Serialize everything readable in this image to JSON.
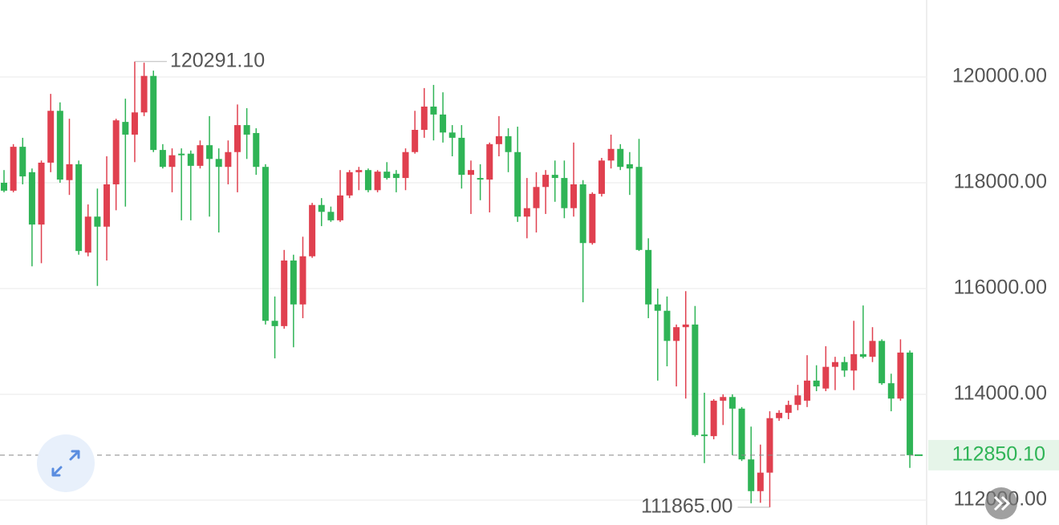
{
  "chart_data": {
    "type": "candlestick",
    "up_color": "#e0404f",
    "down_color": "#2fb456",
    "ylim": [
      111530,
      121455
    ],
    "yticks": [
      {
        "value": 112000,
        "label": "112000.00"
      },
      {
        "value": 114000,
        "label": "114000.00"
      },
      {
        "value": 116000,
        "label": "116000.00"
      },
      {
        "value": 118000,
        "label": "118000.00"
      },
      {
        "value": 120000,
        "label": "120000.00"
      }
    ],
    "grid": true,
    "high_label": "120291.10",
    "low_label": "111865.00",
    "last_label": "112850.10",
    "ohlc": [
      [
        118000,
        118240,
        117820,
        117850
      ],
      [
        117850,
        118730,
        117820,
        118680
      ],
      [
        118680,
        118850,
        117970,
        118120
      ],
      [
        118200,
        118270,
        116420,
        117210
      ],
      [
        117210,
        118420,
        116480,
        118380
      ],
      [
        118380,
        119680,
        118200,
        119360
      ],
      [
        119360,
        119520,
        118000,
        118060
      ],
      [
        118050,
        119210,
        117770,
        118350
      ],
      [
        118350,
        118420,
        116640,
        116710
      ],
      [
        116680,
        117590,
        116610,
        117360
      ],
      [
        117360,
        117890,
        116050,
        117170
      ],
      [
        117170,
        118500,
        116530,
        117970
      ],
      [
        117970,
        119210,
        117480,
        119180
      ],
      [
        119150,
        119590,
        117550,
        118910
      ],
      [
        118910,
        120291.1,
        118390,
        119330
      ],
      [
        119330,
        120270,
        119260,
        120020
      ],
      [
        120020,
        120120,
        118580,
        118620
      ],
      [
        118620,
        118730,
        118270,
        118300
      ],
      [
        118300,
        118650,
        117820,
        118520
      ],
      [
        118550,
        118650,
        117290,
        118520
      ],
      [
        118550,
        118610,
        117290,
        118320
      ],
      [
        118320,
        118800,
        118270,
        118710
      ],
      [
        118710,
        119260,
        117360,
        118450
      ],
      [
        118450,
        118650,
        117060,
        118300
      ],
      [
        118300,
        118800,
        117970,
        118580
      ],
      [
        118580,
        119480,
        117820,
        119090
      ],
      [
        119090,
        119410,
        118450,
        118910
      ],
      [
        118940,
        119030,
        118150,
        118300
      ],
      [
        118300,
        118350,
        115320,
        115390
      ],
      [
        115390,
        115850,
        114680,
        115290
      ],
      [
        115290,
        116730,
        115240,
        116530
      ],
      [
        116530,
        116640,
        114890,
        115700
      ],
      [
        115700,
        116980,
        115440,
        116610
      ],
      [
        116610,
        117620,
        116580,
        117580
      ],
      [
        117580,
        117710,
        117180,
        117450
      ],
      [
        117450,
        117550,
        117260,
        117290
      ],
      [
        117290,
        118240,
        117260,
        117760
      ],
      [
        117760,
        118240,
        117710,
        118200
      ],
      [
        118200,
        118300,
        117860,
        118240
      ],
      [
        118240,
        118270,
        117820,
        117860
      ],
      [
        117860,
        118240,
        117820,
        118210
      ],
      [
        118210,
        118390,
        118060,
        118090
      ],
      [
        118170,
        118240,
        117820,
        118090
      ],
      [
        118090,
        118650,
        117860,
        118580
      ],
      [
        118580,
        119360,
        118550,
        119000
      ],
      [
        119000,
        119790,
        118850,
        119440
      ],
      [
        119440,
        119850,
        118800,
        119290
      ],
      [
        119290,
        119710,
        118760,
        118950
      ],
      [
        118950,
        119090,
        118500,
        118850
      ],
      [
        118850,
        119090,
        117890,
        118150
      ],
      [
        118150,
        118420,
        117410,
        118240
      ],
      [
        118090,
        118350,
        117670,
        118060
      ],
      [
        118060,
        118760,
        117440,
        118730
      ],
      [
        118730,
        119260,
        118500,
        118880
      ],
      [
        118880,
        119030,
        118200,
        118580
      ],
      [
        118580,
        119060,
        117260,
        117360
      ],
      [
        117360,
        118090,
        116950,
        117520
      ],
      [
        117520,
        118200,
        117060,
        117920
      ],
      [
        117920,
        118240,
        117410,
        118150
      ],
      [
        118150,
        118420,
        117640,
        118090
      ],
      [
        118090,
        118420,
        117330,
        117520
      ],
      [
        117520,
        118760,
        117360,
        117970
      ],
      [
        117970,
        118050,
        115740,
        116860
      ],
      [
        116860,
        117820,
        116830,
        117790
      ],
      [
        117790,
        118470,
        117740,
        118420
      ],
      [
        118420,
        118910,
        118270,
        118640
      ],
      [
        118640,
        118730,
        118240,
        118300
      ],
      [
        118350,
        118580,
        117770,
        118270
      ],
      [
        118300,
        118830,
        116710,
        116730
      ],
      [
        116730,
        116950,
        115440,
        115700
      ],
      [
        115700,
        116000,
        114260,
        115580
      ],
      [
        115580,
        115850,
        114530,
        115010
      ],
      [
        115010,
        115320,
        114150,
        115270
      ],
      [
        115270,
        115950,
        113920,
        115320
      ],
      [
        115320,
        115670,
        113200,
        113230
      ],
      [
        113240,
        114030,
        112700,
        113210
      ],
      [
        113210,
        113910,
        113150,
        113880
      ],
      [
        113880,
        114000,
        113420,
        113950
      ],
      [
        113950,
        114000,
        112850,
        113730
      ],
      [
        113730,
        113760,
        112740,
        112770
      ],
      [
        112770,
        113390,
        111940,
        112170
      ],
      [
        112170,
        113050,
        111950,
        112520
      ],
      [
        112520,
        113680,
        111865,
        113550
      ],
      [
        113550,
        113700,
        113500,
        113650
      ],
      [
        113650,
        113880,
        113530,
        113800
      ],
      [
        113800,
        114180,
        113700,
        113980
      ],
      [
        113880,
        114740,
        113760,
        114260
      ],
      [
        114260,
        114550,
        114060,
        114150
      ],
      [
        114110,
        114910,
        114060,
        114520
      ],
      [
        114520,
        114710,
        114080,
        114610
      ],
      [
        114610,
        114710,
        114330,
        114450
      ],
      [
        114450,
        115390,
        114080,
        114760
      ],
      [
        114760,
        115680,
        114680,
        114710
      ],
      [
        114710,
        115270,
        114610,
        115010
      ],
      [
        115010,
        115040,
        114180,
        114210
      ],
      [
        114210,
        114390,
        113680,
        113920
      ],
      [
        113920,
        115040,
        113880,
        114790
      ],
      [
        114790,
        114830,
        112610,
        112850.1
      ]
    ]
  }
}
